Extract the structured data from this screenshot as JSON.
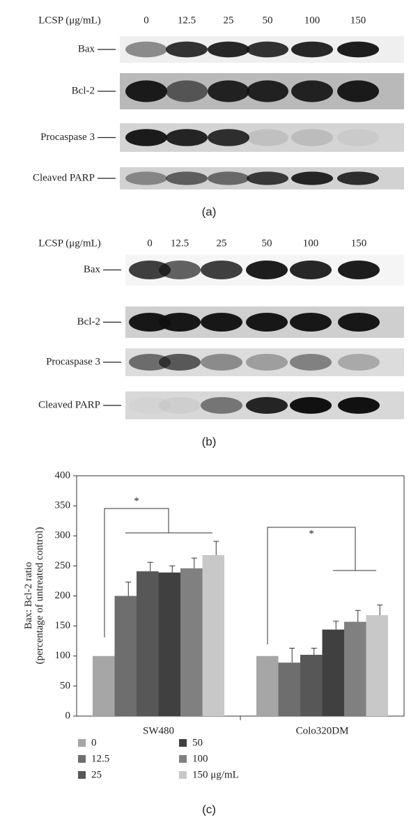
{
  "blot_a": {
    "treatment_label": "LCSP (μg/mL)",
    "doses": [
      "0",
      "12.5",
      "25",
      "50",
      "100",
      "150"
    ],
    "rows": [
      "Bax",
      "Bcl-2",
      "Procaspase 3",
      "Cleaved PARP"
    ],
    "caption": "(a)"
  },
  "blot_b": {
    "treatment_label": "LCSP (μg/mL)",
    "doses": [
      "0",
      "12.5",
      "25",
      "50",
      "100",
      "150"
    ],
    "rows": [
      "Bax",
      "Bcl-2",
      "Procaspase 3",
      "Cleaved PARP"
    ],
    "caption": "(b)"
  },
  "chart_data": {
    "type": "bar",
    "caption": "(c)",
    "y_label": [
      "Bax: Bcl-2 ratio",
      "(percentage of untreated control)"
    ],
    "categories": [
      "SW480",
      "Colo320DM"
    ],
    "series": [
      {
        "name": "0",
        "color": "#a6a6a6",
        "values": [
          100,
          100
        ],
        "errors": [
          0,
          0
        ]
      },
      {
        "name": "12.5",
        "color": "#6e6e6e",
        "values": [
          200,
          89
        ],
        "errors": [
          23,
          24
        ]
      },
      {
        "name": "25",
        "color": "#575757",
        "values": [
          241,
          102
        ],
        "errors": [
          15,
          11
        ]
      },
      {
        "name": "50",
        "color": "#404040",
        "values": [
          239,
          144
        ],
        "errors": [
          11,
          14
        ]
      },
      {
        "name": "100",
        "color": "#808080",
        "values": [
          246,
          157
        ],
        "errors": [
          17,
          19
        ]
      },
      {
        "name": "150 μg/mL",
        "color": "#c8c8c8",
        "values": [
          268,
          168
        ],
        "errors": [
          23,
          17
        ]
      }
    ],
    "annotations": [
      "*",
      "*"
    ],
    "ylim": [
      0,
      400
    ],
    "yticks": [
      0,
      50,
      100,
      150,
      200,
      250,
      300,
      350,
      400
    ]
  }
}
